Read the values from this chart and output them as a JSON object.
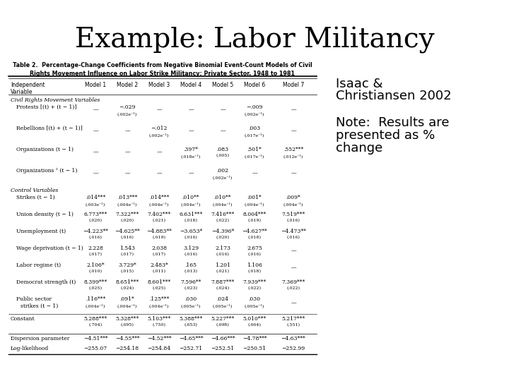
{
  "title": "Example: Labor Militancy",
  "title_fontsize": 28,
  "bg_color": "#ffffff",
  "sidebar_line1": "Isaac &",
  "sidebar_line2": "Christiansen 2002",
  "sidebar_note": "Note:  Results are\npresented as %\nchange",
  "table_title1": "Table 2.  Percentage-Change Coefficients from Negative Binomial Event-Count Models of Civil",
  "table_title2": "Rights Movement Influence on Labor Strike Militancy: Private Sector, 1948 to 1981",
  "col_headers": [
    "Independent\nVariable",
    "Model 1",
    "Model 2",
    "Model 3",
    "Model 4",
    "Model 5",
    "Model 6",
    "Model 7"
  ],
  "fs": 5.5,
  "lfs": 5.5
}
